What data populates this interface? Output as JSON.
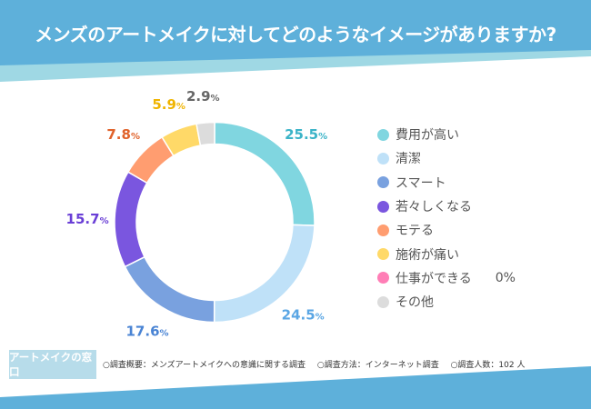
{
  "header": {
    "title": "メンズのアートメイクに対してどのようなイメージがありますか?"
  },
  "colors": {
    "header_blue": "#5eb0da",
    "stripe": "#9fd8e4"
  },
  "chart_data": {
    "type": "pie",
    "variant": "donut",
    "categories": [
      "費用が高い",
      "清潔",
      "スマート",
      "若々しくなる",
      "モテる",
      "施術が痛い",
      "仕事ができる",
      "その他"
    ],
    "values": [
      25.5,
      24.5,
      17.6,
      15.7,
      7.8,
      5.9,
      0,
      2.9
    ],
    "value_labels": [
      "25.5",
      "24.5",
      "17.6",
      "15.7",
      "7.8",
      "5.9",
      "0",
      "2.9"
    ],
    "unit": "%",
    "colors": [
      "#80d6e0",
      "#bfe1f8",
      "#79a1df",
      "#7a56df",
      "#ff9d70",
      "#ffd968",
      "#ff7eb6",
      "#dcdcdc"
    ],
    "label_colors": [
      "#3bb4c8",
      "#5aa6e4",
      "#4a84d4",
      "#6a3fd6",
      "#e0622a",
      "#f0b400",
      "#ff5fa0",
      "#666666"
    ],
    "legend_position": "right",
    "legend_extra": {
      "6": "0%"
    }
  },
  "footer": {
    "brand": "アートメイクの窓口",
    "notes": [
      "○調査概要：メンズアートメイクへの意識に関する調査",
      "○調査方法：インターネット調査",
      "○調査人数：102 人"
    ]
  }
}
